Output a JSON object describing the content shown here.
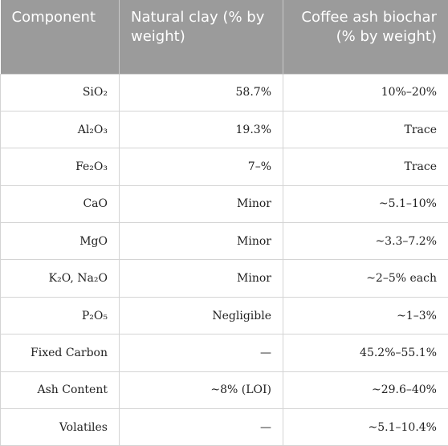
{
  "table": {
    "header": [
      "Component",
      "Natural clay (% by weight)",
      "Coffee ash biochar (% by weight)"
    ],
    "rows": [
      [
        "SiO₂",
        "58.7%",
        "10%–20%"
      ],
      [
        "Al₂O₃",
        "19.3%",
        "Trace"
      ],
      [
        "Fe₂O₃",
        "7–%",
        "Trace"
      ],
      [
        "CaO",
        "Minor",
        "~5.1–10%"
      ],
      [
        "MgO",
        "Minor",
        "~3.3–7.2%"
      ],
      [
        "K₂O, Na₂O",
        "Minor",
        "~2–5% each"
      ],
      [
        "P₂O₅",
        "Negligible",
        "~1–3%"
      ],
      [
        "Fixed Carbon",
        "—",
        "45.2%–55.1%"
      ],
      [
        "Ash Content",
        "~8% (LOI)",
        "~29.6–40%"
      ],
      [
        "Volatiles",
        "—",
        "~5.1–10.4%"
      ]
    ]
  }
}
